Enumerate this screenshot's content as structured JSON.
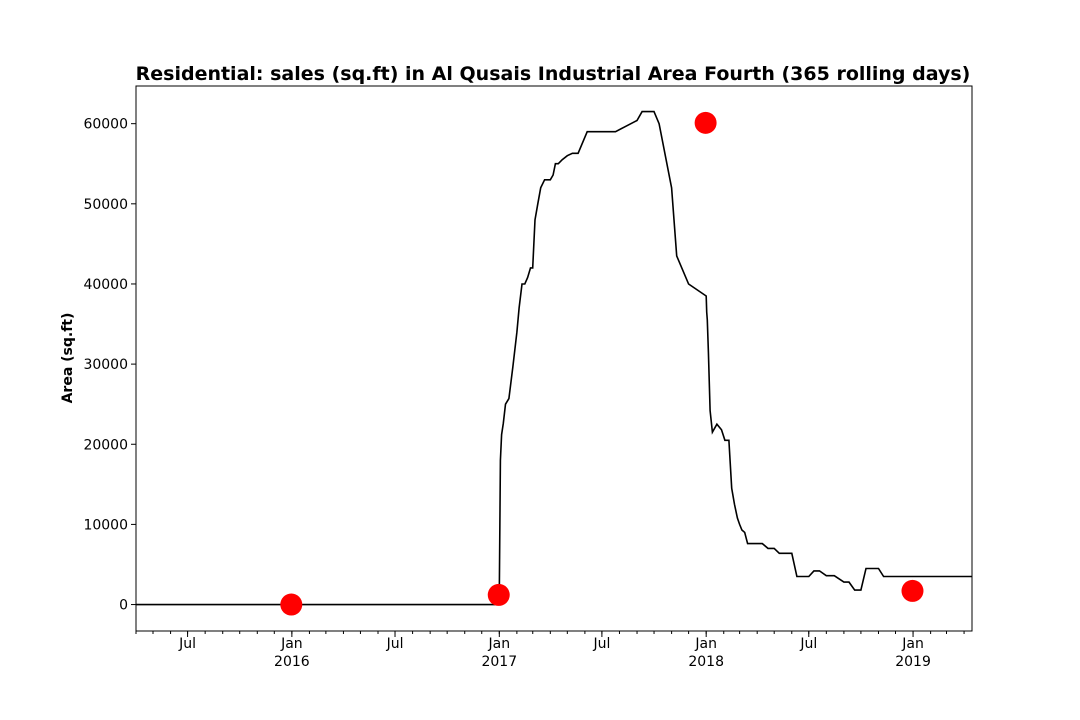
{
  "chart_data": {
    "type": "line",
    "title": "Residential: sales (sq.ft) in Al Qusais Industrial Area Fourth (365 rolling days)",
    "xlabel": "",
    "ylabel": "Area (sq.ft)",
    "xlim": [
      "2015-04-01",
      "2019-04-15"
    ],
    "ylim": [
      -3300,
      64700
    ],
    "grid": false,
    "legend": "none",
    "colors": {
      "line": "#000000",
      "markers": "#ff0000"
    },
    "y_ticks": [
      0,
      10000,
      20000,
      30000,
      40000,
      50000,
      60000
    ],
    "y_tick_labels": [
      "0",
      "10000",
      "20000",
      "30000",
      "40000",
      "50000",
      "60000"
    ],
    "x_major_ticks": [
      {
        "date": "2015-07-01",
        "label": "Jul",
        "sublabel": ""
      },
      {
        "date": "2016-01-01",
        "label": "Jan",
        "sublabel": "2016"
      },
      {
        "date": "2016-07-01",
        "label": "Jul",
        "sublabel": ""
      },
      {
        "date": "2017-01-01",
        "label": "Jan",
        "sublabel": "2017"
      },
      {
        "date": "2017-07-01",
        "label": "Jul",
        "sublabel": ""
      },
      {
        "date": "2018-01-01",
        "label": "Jan",
        "sublabel": "2018"
      },
      {
        "date": "2018-07-01",
        "label": "Jul",
        "sublabel": ""
      },
      {
        "date": "2019-01-01",
        "label": "Jan",
        "sublabel": "2019"
      }
    ],
    "series": [
      {
        "x": [
          "2015-04-01",
          "2016-12-31",
          "2017-01-01",
          "2017-01-03",
          "2017-01-05",
          "2017-01-08",
          "2017-01-12",
          "2017-01-18",
          "2017-01-25",
          "2017-02-01",
          "2017-02-05",
          "2017-02-10",
          "2017-02-15",
          "2017-02-20",
          "2017-02-25",
          "2017-03-01",
          "2017-03-05",
          "2017-03-10",
          "2017-03-15",
          "2017-03-22",
          "2017-04-01",
          "2017-04-06",
          "2017-04-10",
          "2017-04-15",
          "2017-04-22",
          "2017-05-01",
          "2017-05-10",
          "2017-05-20",
          "2017-06-05",
          "2017-06-25",
          "2017-07-10",
          "2017-07-25",
          "2017-08-10",
          "2017-09-01",
          "2017-09-10",
          "2017-10-01",
          "2017-10-10",
          "2017-11-01",
          "2017-11-10",
          "2017-12-01",
          "2018-01-01",
          "2018-01-02",
          "2018-01-03",
          "2018-01-05",
          "2018-01-08",
          "2018-01-12",
          "2018-01-20",
          "2018-01-28",
          "2018-02-03",
          "2018-02-10",
          "2018-02-15",
          "2018-02-20",
          "2018-02-25",
          "2018-03-01",
          "2018-03-05",
          "2018-03-10",
          "2018-03-15",
          "2018-03-25",
          "2018-04-10",
          "2018-04-20",
          "2018-05-01",
          "2018-05-10",
          "2018-05-20",
          "2018-06-01",
          "2018-06-10",
          "2018-06-20",
          "2018-07-01",
          "2018-07-10",
          "2018-07-20",
          "2018-08-01",
          "2018-08-15",
          "2018-09-01",
          "2018-09-10",
          "2018-09-20",
          "2018-10-01",
          "2018-10-10",
          "2018-10-20",
          "2018-11-01",
          "2018-11-10",
          "2018-11-20",
          "2018-12-01",
          "2018-12-10",
          "2018-12-25",
          "2019-01-01",
          "2019-01-10",
          "2019-01-20",
          "2019-02-10",
          "2019-03-01",
          "2019-04-15"
        ],
        "y": [
          0,
          0,
          1300,
          18000,
          21200,
          22600,
          25000,
          25700,
          29700,
          34000,
          37000,
          40000,
          40000,
          40800,
          42000,
          42000,
          48000,
          50000,
          52000,
          53000,
          53000,
          53600,
          55000,
          55000,
          55500,
          56000,
          56300,
          56300,
          59000,
          59000,
          59000,
          59000,
          59600,
          60400,
          61500,
          61500,
          60000,
          52000,
          43500,
          40000,
          38500,
          36500,
          35500,
          31500,
          24200,
          21500,
          22500,
          21800,
          20500,
          20500,
          14500,
          12500,
          10800,
          10000,
          9300,
          9000,
          7600,
          7600,
          7600,
          7000,
          7000,
          6400,
          6400,
          6400,
          3500,
          3500,
          3500,
          4200,
          4200,
          3600,
          3600,
          2800,
          2800,
          1800,
          1800,
          4500,
          4500,
          4500,
          3500,
          3500,
          3500,
          3500,
          3500,
          3500,
          3500,
          3500,
          3500,
          3500,
          3500
        ]
      }
    ],
    "markers": {
      "x": [
        "2015-12-31",
        "2016-12-31",
        "2017-12-31",
        "2018-12-31"
      ],
      "y": [
        0,
        1200,
        60100,
        1700
      ]
    }
  }
}
